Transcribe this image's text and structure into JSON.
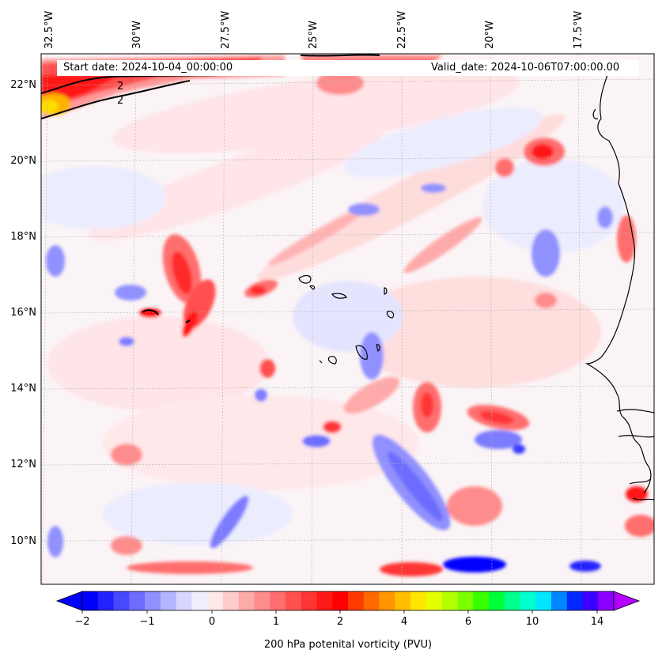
{
  "start_date_text": "Start date: 2024-10-04_00:00:00",
  "valid_date_text": "Valid_date: 2024-10-06T07:00:00.00",
  "longitude_labels": [
    "32.5°W",
    "30°W",
    "27.5°W",
    "25°W",
    "22.5°W",
    "20°W",
    "17.5°W"
  ],
  "latitude_labels": [
    "22°N",
    "20°N",
    "18°N",
    "16°N",
    "14°N",
    "12°N",
    "10°N"
  ],
  "contour_label": "2",
  "colorbar": {
    "label": "200 hPa potenital vorticity (PVU)",
    "tick_labels": [
      "−2",
      "−1",
      "0",
      "1",
      "2",
      "4",
      "6",
      "10",
      "14"
    ],
    "colors": [
      "#0000ff",
      "#2222ff",
      "#4848ff",
      "#6c6cff",
      "#9090ff",
      "#b4b4ff",
      "#d6d6ff",
      "#eeeeff",
      "#ffe8e8",
      "#ffcccc",
      "#ffaaaa",
      "#ff8c8c",
      "#ff6e6e",
      "#ff5050",
      "#ff3434",
      "#ff1818",
      "#ff0000",
      "#ff3a00",
      "#ff6a00",
      "#ff9600",
      "#ffbe00",
      "#ffe600",
      "#e6ff00",
      "#b4ff00",
      "#7cff00",
      "#38ff00",
      "#00ff3a",
      "#00ff8c",
      "#00ffcc",
      "#00e6ff",
      "#0086ff",
      "#0028ff",
      "#3c00ff",
      "#8c00ff"
    ],
    "under_color": "#0000ff",
    "over_color": "#b400ff"
  }
}
